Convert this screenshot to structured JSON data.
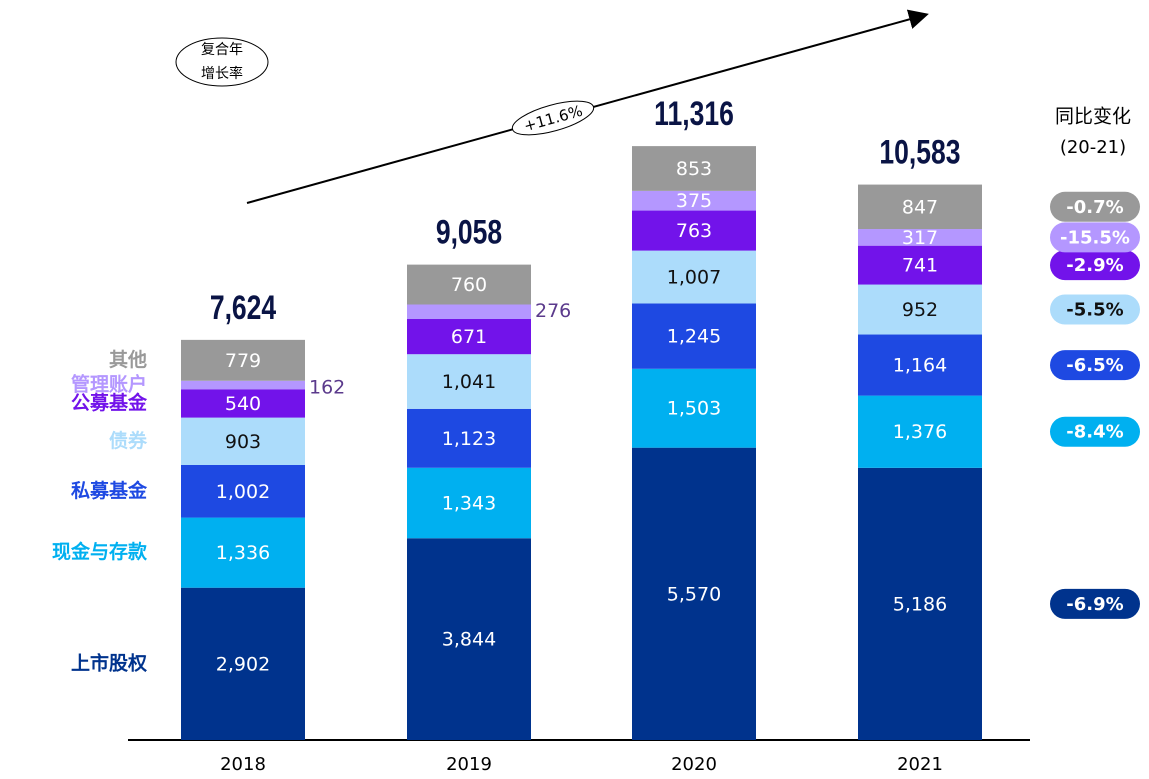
{
  "chart_data": {
    "type": "stacked_bar",
    "categories": [
      "2018",
      "2019",
      "2020",
      "2021"
    ],
    "series": [
      {
        "name": "上市股权",
        "color": "#00338d",
        "values": [
          2902,
          3844,
          5570,
          5186
        ],
        "value_labels": [
          "2,902",
          "3,844",
          "5,570",
          "5,186"
        ],
        "yoy": "-6.9%"
      },
      {
        "name": "现金与存款",
        "color": "#00b0f0",
        "values": [
          1336,
          1343,
          1503,
          1376
        ],
        "value_labels": [
          "1,336",
          "1,343",
          "1,503",
          "1,376"
        ],
        "yoy": "-8.4%"
      },
      {
        "name": "私募基金",
        "color": "#1e49e2",
        "values": [
          1002,
          1123,
          1245,
          1164
        ],
        "value_labels": [
          "1,002",
          "1,123",
          "1,245",
          "1,164"
        ],
        "yoy": "-6.5%"
      },
      {
        "name": "债券",
        "color": "#acdcfb",
        "values": [
          903,
          1041,
          1007,
          952
        ],
        "value_labels": [
          "903",
          "1,041",
          "1,007",
          "952"
        ],
        "yoy": "-5.5%"
      },
      {
        "name": "公募基金",
        "color": "#7213ea",
        "values": [
          540,
          671,
          763,
          741
        ],
        "yoy": "-2.9%"
      },
      {
        "name": "管理账户",
        "color": "#b497ff",
        "values": [
          162,
          276,
          375,
          317
        ],
        "yoy": "-15.5%"
      },
      {
        "name": "其他",
        "color": "#999999",
        "values": [
          779,
          760,
          853,
          847
        ],
        "yoy": "-0.7%"
      }
    ],
    "totals": [
      7624,
      9058,
      11316,
      10583
    ],
    "total_labels": [
      "7,624",
      "9,058",
      "11,316",
      "10,583"
    ],
    "ylim": [
      0,
      14100
    ],
    "yoy_title": "同比变化",
    "yoy_subtitle": "(20-21)",
    "cagr_label": [
      "复合年",
      "增长率"
    ],
    "cagr": "+11.6%"
  }
}
